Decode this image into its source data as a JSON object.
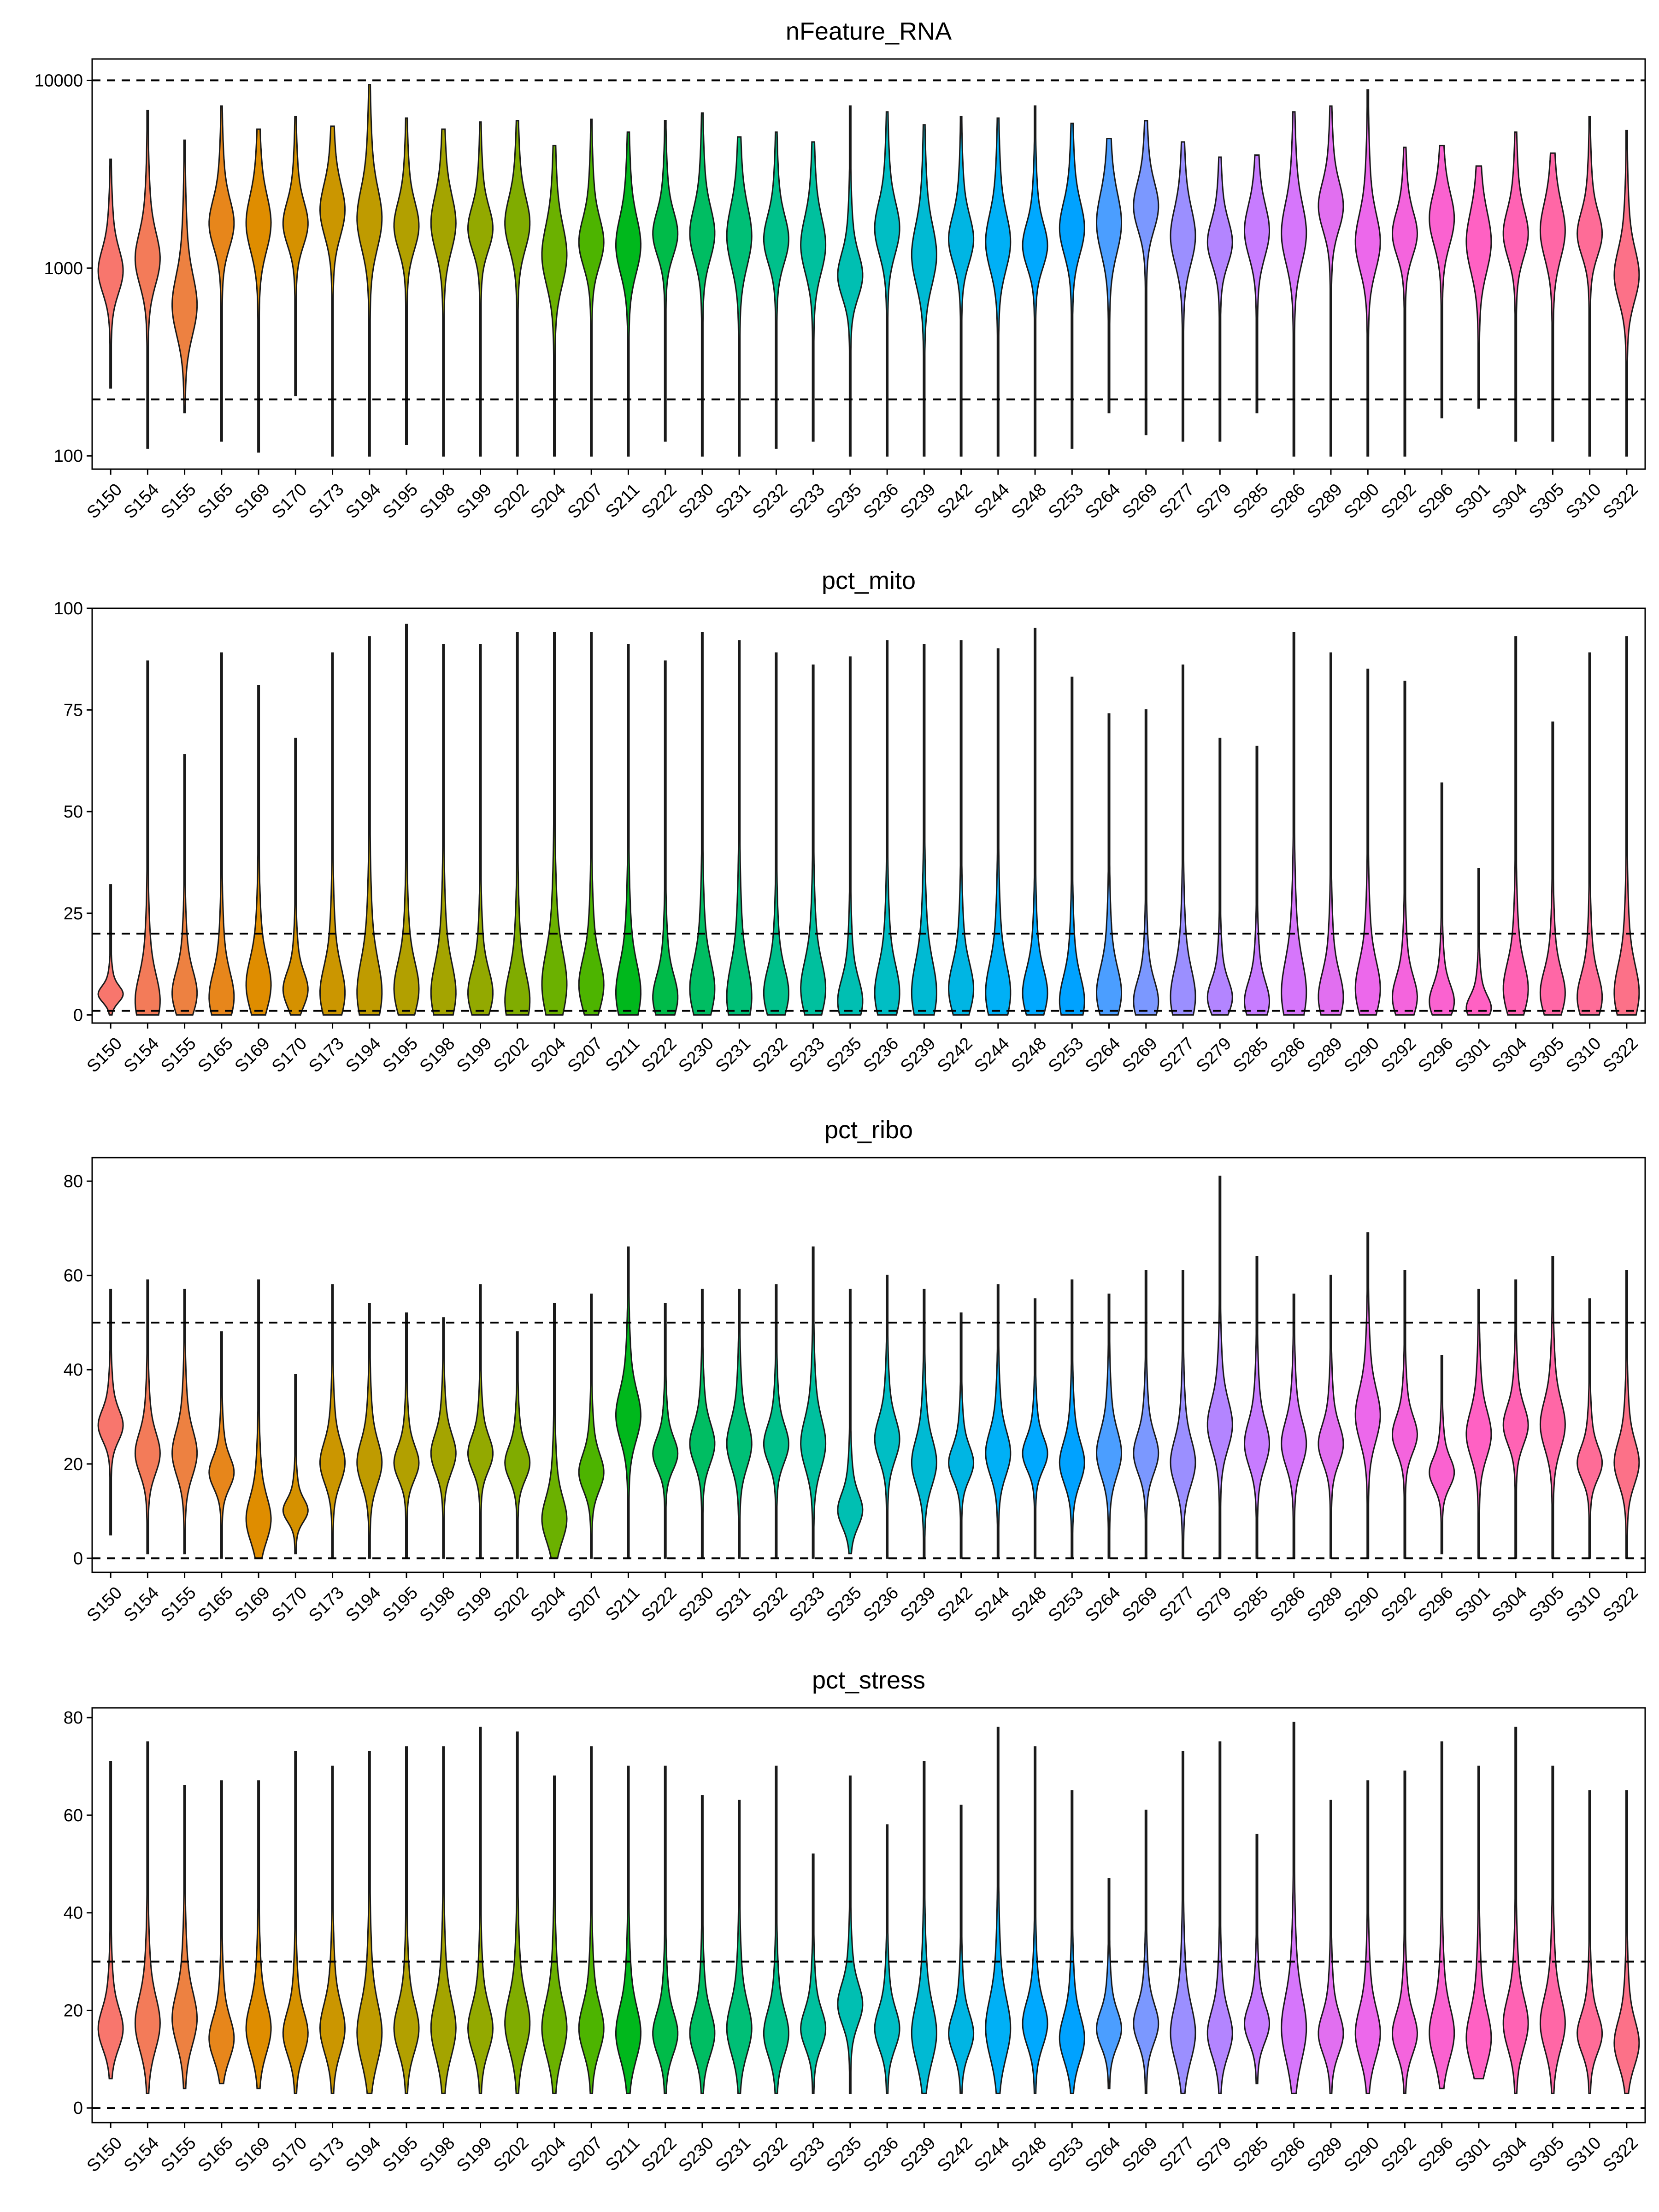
{
  "samples": [
    "S150",
    "S154",
    "S155",
    "S165",
    "S169",
    "S170",
    "S173",
    "S194",
    "S195",
    "S198",
    "S199",
    "S202",
    "S204",
    "S207",
    "S211",
    "S222",
    "S230",
    "S231",
    "S232",
    "S233",
    "S235",
    "S236",
    "S239",
    "S242",
    "S244",
    "S248",
    "S253",
    "S264",
    "S269",
    "S277",
    "S279",
    "S285",
    "S286",
    "S289",
    "S290",
    "S292",
    "S296",
    "S301",
    "S304",
    "S305",
    "S310",
    "S322"
  ],
  "colors": [
    "#F8766D",
    "#F37B59",
    "#ED8141",
    "#E7861B",
    "#DF8D00",
    "#D59100",
    "#CB9600",
    "#BF9B00",
    "#B2A000",
    "#A4A400",
    "#93A900",
    "#80AC00",
    "#6BB100",
    "#4DB400",
    "#00B81C",
    "#00BB49",
    "#00BD62",
    "#00BF76",
    "#00C08B",
    "#00C09E",
    "#00BFB2",
    "#00BEC4",
    "#00BAD3",
    "#00B5E3",
    "#00B0F6",
    "#00A9FF",
    "#00A2FF",
    "#4B9EFF",
    "#7B98FF",
    "#9B8FFF",
    "#B385FF",
    "#C77CFF",
    "#D676FB",
    "#E16FF0",
    "#EC68EB",
    "#F464DD",
    "#FA62D0",
    "#FF61C3",
    "#FF63B4",
    "#FF67A6",
    "#FE6C97",
    "#FC7188"
  ],
  "chart_data": [
    {
      "type": "violin",
      "title": "nFeature_RNA",
      "yscale": "log10",
      "ylim": [
        85,
        13000
      ],
      "yticks": [
        100,
        1000,
        10000
      ],
      "ytick_labels": [
        "100",
        "1000",
        "10000"
      ],
      "thresholds": [
        200,
        10000
      ],
      "categories": [
        "S150",
        "S154",
        "S155",
        "S165",
        "S169",
        "S170",
        "S173",
        "S194",
        "S195",
        "S198",
        "S199",
        "S202",
        "S204",
        "S207",
        "S211",
        "S222",
        "S230",
        "S231",
        "S232",
        "S233",
        "S235",
        "S236",
        "S239",
        "S242",
        "S244",
        "S248",
        "S253",
        "S264",
        "S269",
        "S277",
        "S279",
        "S285",
        "S286",
        "S289",
        "S290",
        "S292",
        "S296",
        "S301",
        "S304",
        "S305",
        "S310",
        "S322"
      ],
      "min": [
        230,
        110,
        170,
        120,
        105,
        210,
        100,
        100,
        115,
        100,
        100,
        100,
        100,
        100,
        100,
        120,
        100,
        100,
        110,
        120,
        100,
        100,
        100,
        100,
        100,
        100,
        110,
        170,
        130,
        120,
        120,
        170,
        100,
        100,
        100,
        100,
        160,
        180,
        120,
        120,
        100,
        100
      ],
      "max": [
        3800,
        6900,
        4800,
        7300,
        5500,
        6400,
        5700,
        9500,
        6300,
        5500,
        6000,
        6100,
        4500,
        6200,
        5300,
        6100,
        6700,
        5000,
        5300,
        4700,
        7300,
        6800,
        5800,
        6400,
        6300,
        7300,
        5900,
        4900,
        6100,
        4700,
        3900,
        4000,
        6800,
        7300,
        8900,
        4400,
        4500,
        3500,
        5300,
        4100,
        6400,
        5400
      ],
      "median": [
        950,
        1100,
        620,
        1700,
        1700,
        1700,
        2000,
        1800,
        1650,
        1700,
        1600,
        1700,
        1150,
        1350,
        1300,
        1500,
        1500,
        1450,
        1400,
        1300,
        900,
        1600,
        1150,
        1400,
        1350,
        1300,
        1600,
        1700,
        2100,
        1450,
        1350,
        1550,
        1500,
        2100,
        1350,
        1500,
        1800,
        1350,
        1500,
        1550,
        1500,
        900
      ]
    },
    {
      "type": "violin",
      "title": "pct_mito",
      "yscale": "linear",
      "ylim": [
        -2,
        100
      ],
      "yticks": [
        0,
        25,
        50,
        75,
        100
      ],
      "ytick_labels": [
        "0",
        "25",
        "50",
        "75",
        "100"
      ],
      "thresholds": [
        1,
        20
      ],
      "categories": [
        "S150",
        "S154",
        "S155",
        "S165",
        "S169",
        "S170",
        "S173",
        "S194",
        "S195",
        "S198",
        "S199",
        "S202",
        "S204",
        "S207",
        "S211",
        "S222",
        "S230",
        "S231",
        "S232",
        "S233",
        "S235",
        "S236",
        "S239",
        "S242",
        "S244",
        "S248",
        "S253",
        "S264",
        "S269",
        "S277",
        "S279",
        "S285",
        "S286",
        "S289",
        "S290",
        "S292",
        "S296",
        "S301",
        "S304",
        "S305",
        "S310",
        "S322"
      ],
      "min": [
        0,
        0,
        0,
        0,
        0,
        0,
        0,
        0,
        0,
        0,
        0,
        0,
        0,
        0,
        0,
        0,
        0,
        0,
        0,
        0,
        0,
        0,
        0,
        0,
        0,
        0,
        0,
        0,
        0,
        0,
        0,
        0,
        0,
        0,
        0,
        0,
        0,
        0,
        0,
        0,
        0,
        0
      ],
      "max": [
        32,
        87,
        64,
        89,
        81,
        68,
        89,
        93,
        96,
        91,
        91,
        94,
        94,
        94,
        91,
        87,
        94,
        92,
        89,
        86,
        88,
        92,
        91,
        92,
        90,
        95,
        83,
        74,
        75,
        86,
        68,
        66,
        94,
        89,
        85,
        82,
        57,
        36,
        93,
        72,
        89,
        93
      ],
      "median": [
        5,
        3,
        5,
        4,
        7,
        6,
        5,
        5,
        6,
        5,
        5,
        3,
        7,
        7,
        5,
        4,
        6,
        4,
        5,
        6,
        3,
        5,
        5,
        6,
        5,
        5,
        3,
        5,
        3,
        4,
        4,
        3,
        5,
        4,
        6,
        4,
        3,
        1.5,
        6,
        5,
        4,
        5
      ]
    },
    {
      "type": "violin",
      "title": "pct_ribo",
      "yscale": "linear",
      "ylim": [
        -3,
        85
      ],
      "yticks": [
        0,
        20,
        40,
        60,
        80
      ],
      "ytick_labels": [
        "0",
        "20",
        "40",
        "60",
        "80"
      ],
      "thresholds": [
        0,
        50
      ],
      "categories": [
        "S150",
        "S154",
        "S155",
        "S165",
        "S169",
        "S170",
        "S173",
        "S194",
        "S195",
        "S198",
        "S199",
        "S202",
        "S204",
        "S207",
        "S211",
        "S222",
        "S230",
        "S231",
        "S232",
        "S233",
        "S235",
        "S236",
        "S239",
        "S242",
        "S244",
        "S248",
        "S253",
        "S264",
        "S269",
        "S277",
        "S279",
        "S285",
        "S286",
        "S289",
        "S290",
        "S292",
        "S296",
        "S301",
        "S304",
        "S305",
        "S310",
        "S322"
      ],
      "min": [
        5,
        1,
        1,
        0,
        0,
        1,
        0,
        0,
        0,
        0,
        0,
        0,
        0,
        0,
        0,
        0,
        0,
        0,
        0,
        0,
        1,
        0,
        0,
        0,
        0,
        0,
        0,
        0,
        0,
        0,
        0,
        0,
        0,
        0,
        0,
        0,
        1,
        0,
        0,
        0,
        0,
        0
      ],
      "max": [
        57,
        59,
        57,
        48,
        59,
        39,
        58,
        54,
        52,
        51,
        58,
        48,
        54,
        56,
        66,
        54,
        57,
        57,
        58,
        66,
        57,
        60,
        57,
        52,
        58,
        55,
        59,
        56,
        61,
        61,
        81,
        64,
        56,
        60,
        69,
        61,
        43,
        57,
        59,
        64,
        55,
        61
      ],
      "median": [
        28,
        22,
        22,
        18,
        8,
        10,
        20,
        20,
        20,
        22,
        22,
        20,
        8,
        18,
        30,
        22,
        24,
        24,
        24,
        24,
        10,
        25,
        20,
        20,
        22,
        22,
        20,
        22,
        22,
        20,
        28,
        24,
        24,
        24,
        30,
        26,
        18,
        26,
        28,
        28,
        20,
        20
      ]
    },
    {
      "type": "violin",
      "title": "pct_stress",
      "yscale": "linear",
      "ylim": [
        -3,
        82
      ],
      "yticks": [
        0,
        20,
        40,
        60,
        80
      ],
      "ytick_labels": [
        "0",
        "20",
        "40",
        "60",
        "80"
      ],
      "thresholds": [
        0,
        30
      ],
      "categories": [
        "S150",
        "S154",
        "S155",
        "S165",
        "S169",
        "S170",
        "S173",
        "S194",
        "S195",
        "S198",
        "S199",
        "S202",
        "S204",
        "S207",
        "S211",
        "S222",
        "S230",
        "S231",
        "S232",
        "S233",
        "S235",
        "S236",
        "S239",
        "S242",
        "S244",
        "S248",
        "S253",
        "S264",
        "S269",
        "S277",
        "S279",
        "S285",
        "S286",
        "S289",
        "S290",
        "S292",
        "S296",
        "S301",
        "S304",
        "S305",
        "S310",
        "S322"
      ],
      "min": [
        6,
        3,
        4,
        5,
        4,
        3,
        3,
        3,
        3,
        3,
        3,
        3,
        3,
        3,
        3,
        3,
        3,
        3,
        3,
        3,
        3,
        3,
        3,
        3,
        3,
        3,
        3,
        4,
        3,
        3,
        3,
        5,
        3,
        3,
        3,
        3,
        4,
        6,
        3,
        3,
        3,
        3
      ],
      "max": [
        71,
        75,
        66,
        67,
        67,
        73,
        70,
        73,
        74,
        74,
        78,
        77,
        68,
        74,
        70,
        70,
        64,
        63,
        70,
        52,
        68,
        58,
        71,
        62,
        78,
        74,
        65,
        47,
        61,
        73,
        75,
        56,
        79,
        63,
        67,
        69,
        75,
        70,
        78,
        70,
        65,
        65
      ],
      "median": [
        16,
        17,
        18,
        14,
        16,
        15,
        16,
        15,
        16,
        16,
        16,
        17,
        16,
        16,
        15,
        15,
        15,
        16,
        15,
        16,
        21,
        16,
        15,
        15,
        16,
        17,
        14,
        16,
        17,
        15,
        15,
        17,
        16,
        15,
        15,
        15,
        15,
        14,
        17,
        17,
        15,
        13
      ]
    }
  ]
}
